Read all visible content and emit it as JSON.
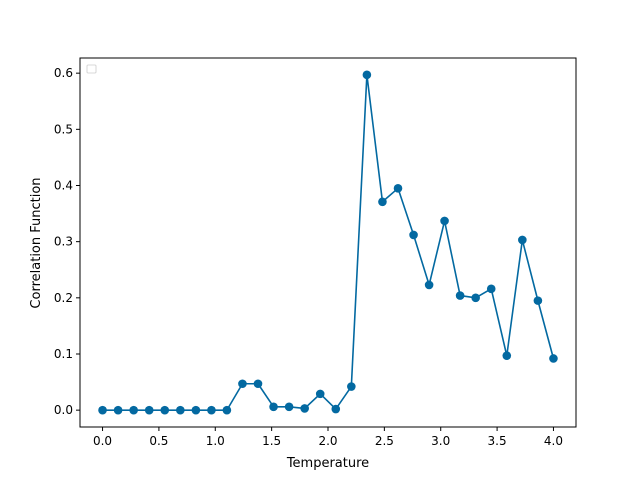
{
  "chart_data": {
    "type": "line",
    "xlabel": "Temperature",
    "ylabel": "Correlation Function",
    "xlim": [
      -0.2,
      4.2
    ],
    "ylim": [
      -0.03,
      0.627
    ],
    "xticks": [
      0.0,
      0.5,
      1.0,
      1.5,
      2.0,
      2.5,
      3.0,
      3.5,
      4.0
    ],
    "xtick_labels": [
      "0.0",
      "0.5",
      "1.0",
      "1.5",
      "2.0",
      "2.5",
      "3.0",
      "3.5",
      "4.0"
    ],
    "yticks": [
      0.0,
      0.1,
      0.2,
      0.3,
      0.4,
      0.5,
      0.6
    ],
    "ytick_labels": [
      "0.0",
      "0.1",
      "0.2",
      "0.3",
      "0.4",
      "0.5",
      "0.6"
    ],
    "grid": false,
    "legend": "upper left",
    "series": [
      {
        "color": "#0369a1",
        "marker": "circle",
        "x": [
          0.0,
          0.138,
          0.276,
          0.414,
          0.552,
          0.69,
          0.828,
          0.966,
          1.103,
          1.241,
          1.379,
          1.517,
          1.655,
          1.793,
          1.931,
          2.069,
          2.207,
          2.345,
          2.483,
          2.621,
          2.759,
          2.897,
          3.034,
          3.172,
          3.31,
          3.448,
          3.586,
          3.724,
          3.862,
          4.0
        ],
        "y": [
          0.0,
          0.0,
          0.0,
          0.0,
          0.0,
          0.0,
          0.0,
          0.0,
          0.0,
          0.047,
          0.047,
          0.006,
          0.006,
          0.003,
          0.029,
          0.002,
          0.042,
          0.597,
          0.371,
          0.395,
          0.312,
          0.223,
          0.337,
          0.204,
          0.2,
          0.216,
          0.097,
          0.303,
          0.195,
          0.092
        ]
      }
    ]
  }
}
